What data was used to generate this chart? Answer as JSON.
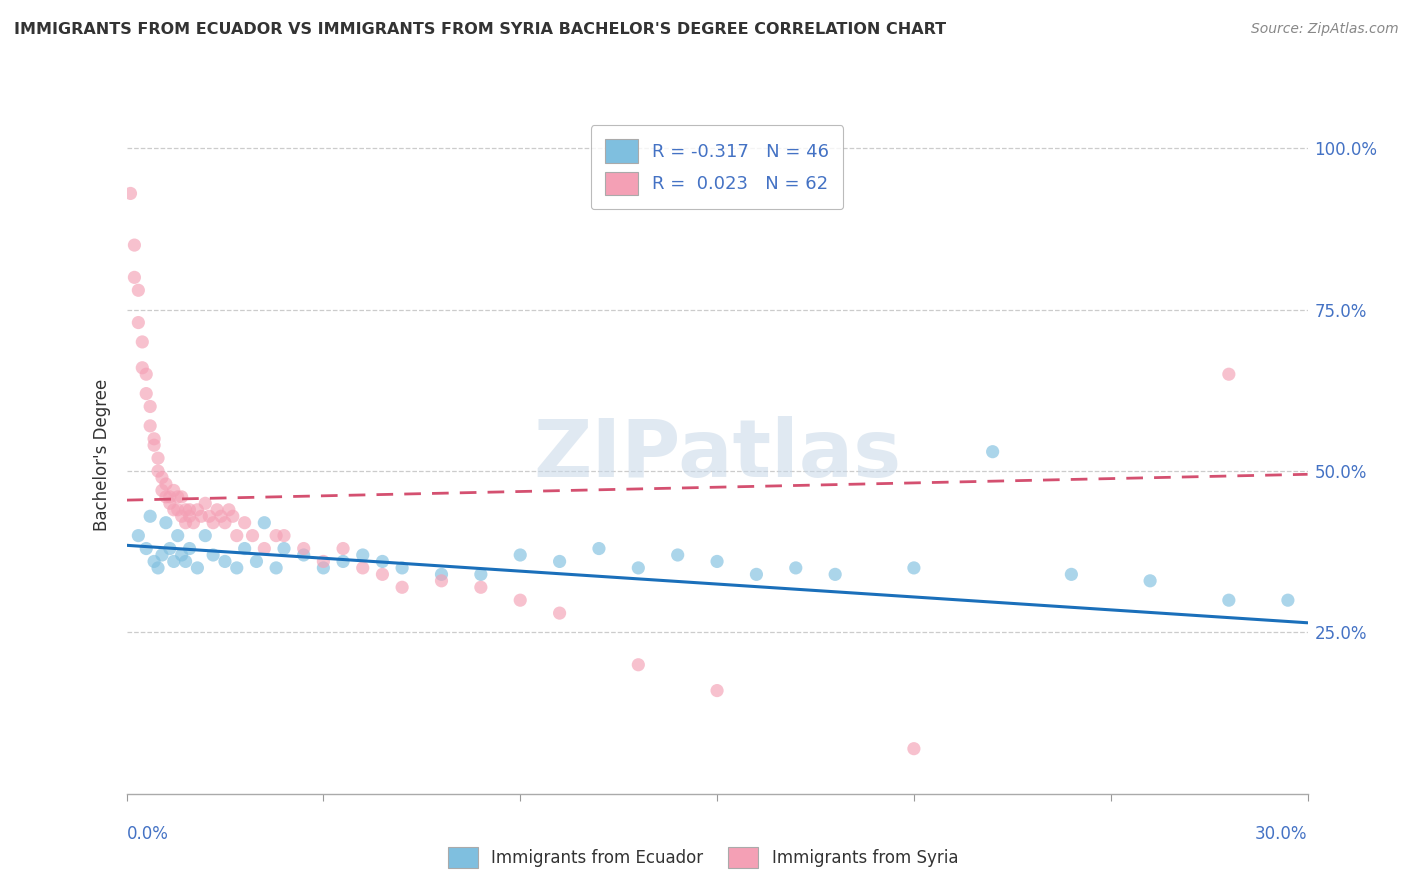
{
  "title": "IMMIGRANTS FROM ECUADOR VS IMMIGRANTS FROM SYRIA BACHELOR'S DEGREE CORRELATION CHART",
  "source": "Source: ZipAtlas.com",
  "ylabel": "Bachelor's Degree",
  "color_ecuador": "#7fbfdf",
  "color_syria": "#f4a0b5",
  "color_ecuador_line": "#1a6fba",
  "color_syria_line": "#d45070",
  "legend_ecuador": "R = -0.317   N = 46",
  "legend_syria": "R =  0.023   N = 62",
  "xlim": [
    0.0,
    0.3
  ],
  "ylim": [
    0.0,
    1.05
  ],
  "ecuador_x": [
    0.003,
    0.005,
    0.006,
    0.007,
    0.008,
    0.009,
    0.01,
    0.011,
    0.012,
    0.013,
    0.014,
    0.015,
    0.016,
    0.018,
    0.02,
    0.022,
    0.025,
    0.028,
    0.03,
    0.033,
    0.035,
    0.038,
    0.04,
    0.045,
    0.05,
    0.055,
    0.06,
    0.065,
    0.07,
    0.08,
    0.09,
    0.1,
    0.11,
    0.12,
    0.13,
    0.14,
    0.15,
    0.16,
    0.17,
    0.18,
    0.2,
    0.22,
    0.24,
    0.26,
    0.28,
    0.295
  ],
  "ecuador_y": [
    0.4,
    0.38,
    0.43,
    0.36,
    0.35,
    0.37,
    0.42,
    0.38,
    0.36,
    0.4,
    0.37,
    0.36,
    0.38,
    0.35,
    0.4,
    0.37,
    0.36,
    0.35,
    0.38,
    0.36,
    0.42,
    0.35,
    0.38,
    0.37,
    0.35,
    0.36,
    0.37,
    0.36,
    0.35,
    0.34,
    0.34,
    0.37,
    0.36,
    0.38,
    0.35,
    0.37,
    0.36,
    0.34,
    0.35,
    0.34,
    0.35,
    0.53,
    0.34,
    0.33,
    0.3,
    0.3
  ],
  "syria_x": [
    0.001,
    0.002,
    0.002,
    0.003,
    0.003,
    0.004,
    0.004,
    0.005,
    0.005,
    0.006,
    0.006,
    0.007,
    0.007,
    0.008,
    0.008,
    0.009,
    0.009,
    0.01,
    0.01,
    0.011,
    0.011,
    0.012,
    0.012,
    0.013,
    0.013,
    0.014,
    0.014,
    0.015,
    0.015,
    0.016,
    0.016,
    0.017,
    0.018,
    0.019,
    0.02,
    0.021,
    0.022,
    0.023,
    0.024,
    0.025,
    0.026,
    0.027,
    0.028,
    0.03,
    0.032,
    0.035,
    0.038,
    0.04,
    0.045,
    0.05,
    0.055,
    0.06,
    0.065,
    0.07,
    0.08,
    0.09,
    0.1,
    0.11,
    0.13,
    0.15,
    0.2,
    0.28
  ],
  "syria_y": [
    0.93,
    0.85,
    0.8,
    0.78,
    0.73,
    0.7,
    0.66,
    0.65,
    0.62,
    0.6,
    0.57,
    0.55,
    0.54,
    0.52,
    0.5,
    0.49,
    0.47,
    0.46,
    0.48,
    0.46,
    0.45,
    0.44,
    0.47,
    0.46,
    0.44,
    0.43,
    0.46,
    0.44,
    0.42,
    0.44,
    0.43,
    0.42,
    0.44,
    0.43,
    0.45,
    0.43,
    0.42,
    0.44,
    0.43,
    0.42,
    0.44,
    0.43,
    0.4,
    0.42,
    0.4,
    0.38,
    0.4,
    0.4,
    0.38,
    0.36,
    0.38,
    0.35,
    0.34,
    0.32,
    0.33,
    0.32,
    0.3,
    0.28,
    0.2,
    0.16,
    0.07,
    0.65
  ]
}
